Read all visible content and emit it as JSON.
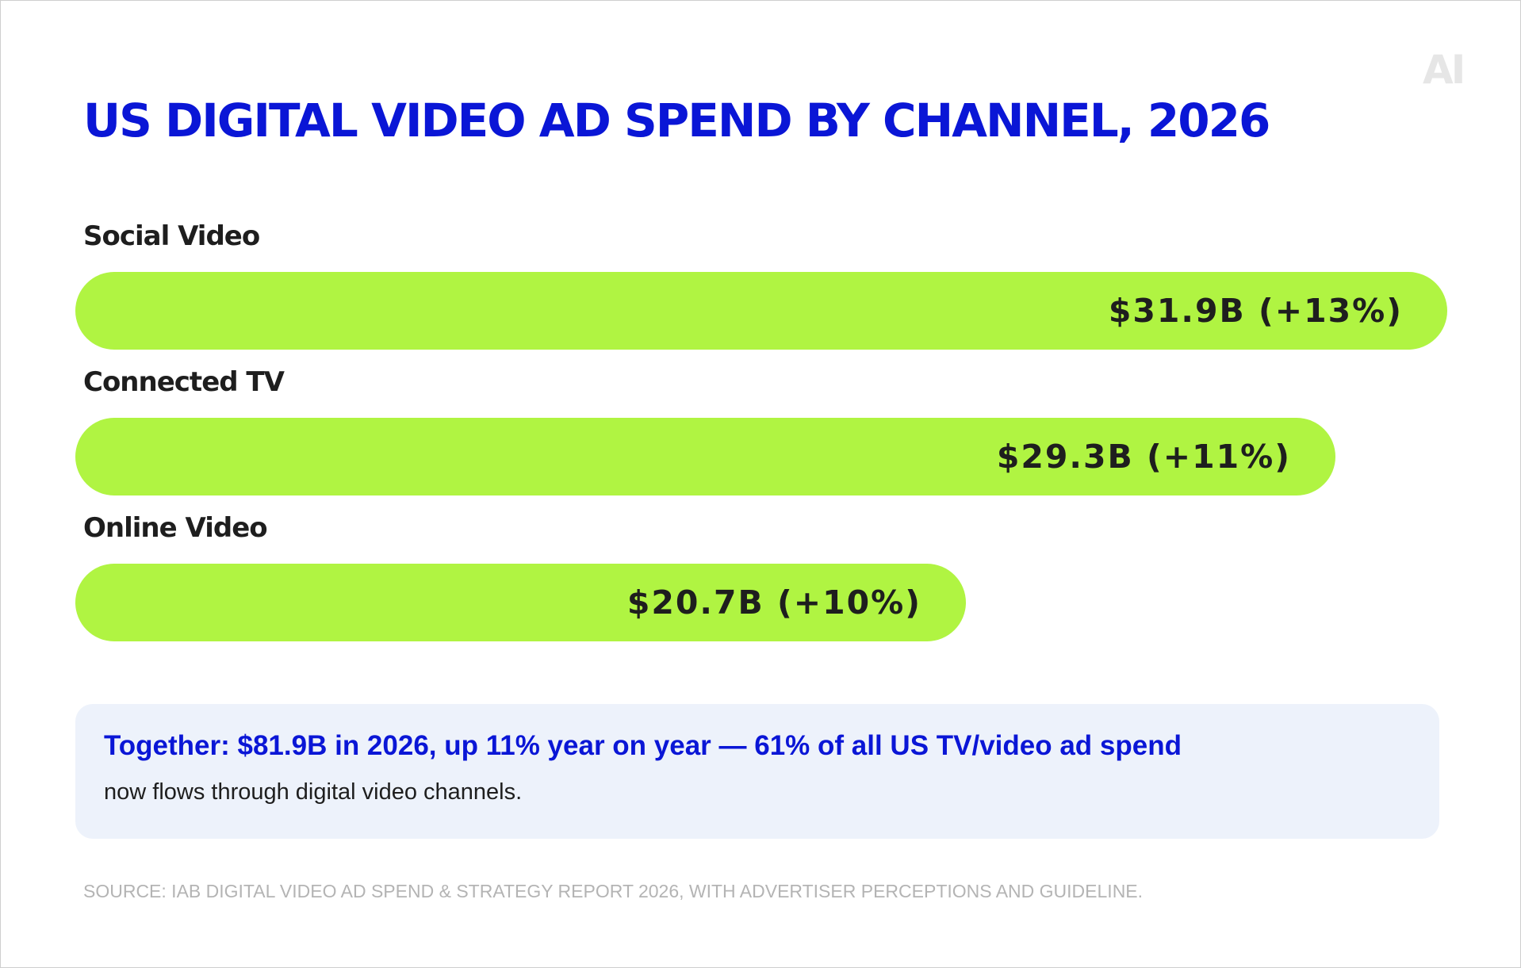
{
  "logo": "AI",
  "chart_data": {
    "type": "bar",
    "orientation": "horizontal",
    "title": "US DIGITAL VIDEO AD SPEND BY CHANNEL, 2026",
    "categories": [
      "Social Video",
      "Connected TV",
      "Online Video"
    ],
    "values": [
      31.9,
      29.3,
      20.7
    ],
    "value_labels": [
      "$31.9B (+13%)",
      "$29.3B (+11%)",
      "$20.7B (+10%)"
    ],
    "growth_pct": [
      13,
      11,
      10
    ],
    "unit": "$B",
    "bar_color": "#b0f442",
    "title_color": "#0a16d6"
  },
  "callout": {
    "headline": "Together: $81.9B in 2026, up 11% year on year — 61% of all US TV/video ad spend",
    "body": "now flows through digital video channels."
  },
  "source": "SOURCE: IAB DIGITAL VIDEO AD SPEND & STRATEGY REPORT 2026, WITH ADVERTISER PERCEPTIONS AND GUIDELINE."
}
